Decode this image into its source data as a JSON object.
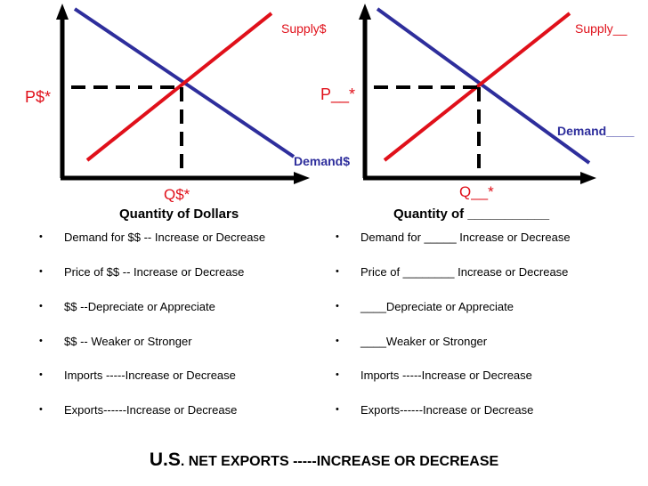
{
  "left_graph": {
    "supply_label": "Supply$",
    "demand_label": "Demand$",
    "price_label": "P$*",
    "quantity_label": "Q$*",
    "x_axis_title": "Quantity of Dollars"
  },
  "right_graph": {
    "supply_label": "Supply__",
    "demand_label": "Demand____",
    "price_label": "P__*",
    "quantity_label": "Q__*",
    "x_axis_title": "Quantity of ___________"
  },
  "colors": {
    "supply": "#e0101a",
    "demand": "#2e2e9c",
    "axis": "#000000"
  },
  "bullet_glyph": "•",
  "left_list": [
    "Demand for  $$ --  Increase or Decrease",
    "Price of $$ -- Increase or Decrease",
    "$$ --Depreciate or Appreciate",
    "$$ -- Weaker or Stronger",
    "Imports -----Increase or Decrease",
    "Exports------Increase or Decrease"
  ],
  "right_list": [
    "Demand for _____   Increase or Decrease",
    "Price of ________  Increase or Decrease",
    "____Depreciate or Appreciate",
    "____Weaker or Stronger",
    "Imports -----Increase or Decrease",
    "Exports------Increase or Decrease"
  ],
  "footer": {
    "us": "U.S",
    "rest": ". NET EXPORTS -----INCREASE OR DECREASE"
  }
}
